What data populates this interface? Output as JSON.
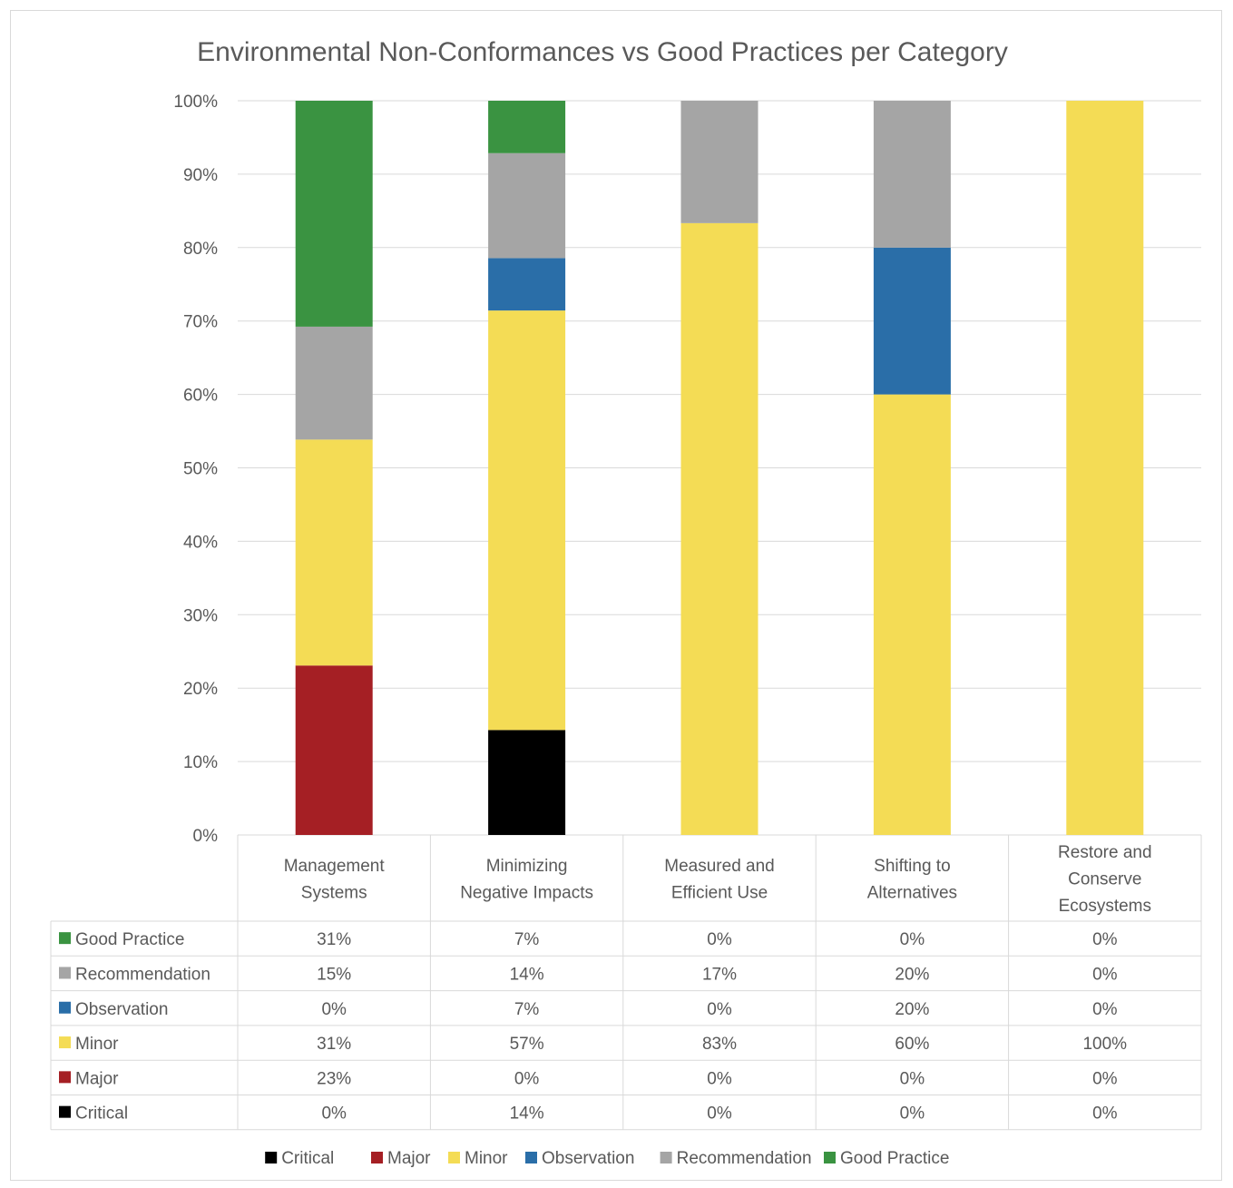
{
  "chart_data": {
    "type": "bar",
    "stacked": "percent",
    "title": "Environmental Non-Conformances vs Good Practices per Category",
    "ylim": [
      0,
      100
    ],
    "yticks": [
      "0%",
      "10%",
      "20%",
      "30%",
      "40%",
      "50%",
      "60%",
      "70%",
      "80%",
      "90%",
      "100%"
    ],
    "grid": true,
    "legend_position": "bottom",
    "categories": [
      [
        "Management",
        "Systems"
      ],
      [
        "Minimizing",
        "Negative Impacts"
      ],
      [
        "Measured and",
        "Efficient Use"
      ],
      [
        "Shifting to",
        "Alternatives"
      ],
      [
        "Restore and",
        "Conserve",
        "Ecosystems"
      ]
    ],
    "series": [
      {
        "name": "Critical",
        "color": "#000000",
        "values": [
          0,
          14.29,
          0,
          0,
          0
        ],
        "labels": [
          "0%",
          "14%",
          "0%",
          "0%",
          "0%"
        ]
      },
      {
        "name": "Major",
        "color": "#a51f24",
        "values": [
          23.08,
          0,
          0,
          0,
          0
        ],
        "labels": [
          "23%",
          "0%",
          "0%",
          "0%",
          "0%"
        ]
      },
      {
        "name": "Minor",
        "color": "#f4dc55",
        "values": [
          30.77,
          57.14,
          83.33,
          60,
          100
        ],
        "labels": [
          "31%",
          "57%",
          "83%",
          "60%",
          "100%"
        ]
      },
      {
        "name": "Observation",
        "color": "#2a6ea8",
        "values": [
          0,
          7.14,
          0,
          20,
          0
        ],
        "labels": [
          "0%",
          "7%",
          "0%",
          "20%",
          "0%"
        ]
      },
      {
        "name": "Recommendation",
        "color": "#a5a5a5",
        "values": [
          15.38,
          14.29,
          16.67,
          20,
          0
        ],
        "labels": [
          "15%",
          "14%",
          "17%",
          "20%",
          "0%"
        ]
      },
      {
        "name": "Good Practice",
        "color": "#3a9341",
        "values": [
          30.77,
          7.14,
          0,
          0,
          0
        ],
        "labels": [
          "31%",
          "7%",
          "0%",
          "0%",
          "0%"
        ]
      }
    ],
    "table_row_order": [
      "Good Practice",
      "Recommendation",
      "Observation",
      "Minor",
      "Major",
      "Critical"
    ]
  }
}
